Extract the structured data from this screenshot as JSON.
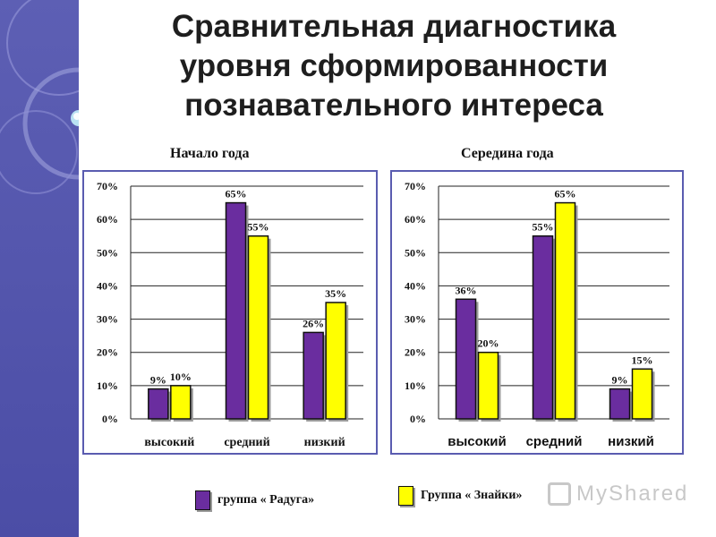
{
  "slide": {
    "title_lines": [
      "Сравнительная диагностика",
      "уровня сформированности",
      "познавательного интереса"
    ]
  },
  "legend": [
    {
      "label": "группа « Радуга»",
      "color": "#6a2d9f"
    },
    {
      "label": "Группа « Знайки»",
      "color": "#ffff00"
    }
  ],
  "watermark": {
    "text": "MyShared"
  },
  "chart_data": [
    {
      "type": "bar",
      "title": "Начало года",
      "categories": [
        "высокий",
        "средний",
        "низкий"
      ],
      "category_font": "serif",
      "series": [
        {
          "name": "группа « Радуга»",
          "color": "#6a2d9f",
          "values": [
            9,
            65,
            26
          ]
        },
        {
          "name": "Группа « Знайки»",
          "color": "#ffff00",
          "values": [
            10,
            55,
            35
          ]
        }
      ],
      "ylim": [
        0,
        70
      ],
      "yticks": [
        "0%",
        "10%",
        "20%",
        "30%",
        "40%",
        "50%",
        "60%",
        "70%"
      ],
      "value_suffix": "%",
      "grid": true
    },
    {
      "type": "bar",
      "title": "Середина года",
      "categories": [
        "высокий",
        "средний",
        "низкий"
      ],
      "category_font": "sans",
      "series": [
        {
          "name": "группа « Радуга»",
          "color": "#6a2d9f",
          "values": [
            36,
            55,
            9
          ]
        },
        {
          "name": "Группа « Знайки»",
          "color": "#ffff00",
          "values": [
            20,
            65,
            15
          ]
        }
      ],
      "ylim": [
        0,
        70
      ],
      "yticks": [
        "0%",
        "10%",
        "20%",
        "30%",
        "40%",
        "50%",
        "60%",
        "70%"
      ],
      "value_suffix": "%",
      "grid": true
    }
  ]
}
